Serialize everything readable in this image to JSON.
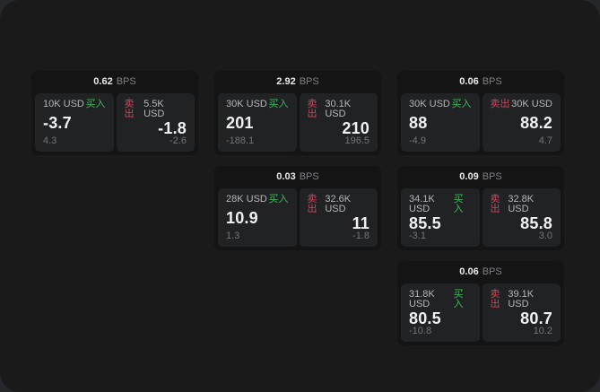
{
  "labels": {
    "bps": "BPS",
    "buy": "买入",
    "sell": "卖出"
  },
  "colors": {
    "buy_accent": "#3cba5a",
    "sell_accent": "#c8485e",
    "window_bg": "#1a1a1b",
    "card_bg": "#141415",
    "panel_bg": "#212224"
  },
  "cards": [
    {
      "spread": "0.62",
      "buy": {
        "size": "10K USD",
        "price": "-3.7",
        "delta": "4.3"
      },
      "sell": {
        "size": "5.5K USD",
        "price": "-1.8",
        "delta": "-2.6"
      }
    },
    {
      "spread": "2.92",
      "buy": {
        "size": "30K USD",
        "price": "201",
        "delta": "-188.1"
      },
      "sell": {
        "size": "30.1K USD",
        "price": "210",
        "delta": "196.5"
      }
    },
    {
      "spread": "0.06",
      "buy": {
        "size": "30K USD",
        "price": "88",
        "delta": "-4.9"
      },
      "sell": {
        "size": "30K USD",
        "price": "88.2",
        "delta": "4.7"
      }
    },
    {
      "spread": "0.03",
      "buy": {
        "size": "28K USD",
        "price": "10.9",
        "delta": "1.3"
      },
      "sell": {
        "size": "32.6K USD",
        "price": "11",
        "delta": "-1.8"
      }
    },
    {
      "spread": "0.09",
      "buy": {
        "size": "34.1K USD",
        "price": "85.5",
        "delta": "-3.1"
      },
      "sell": {
        "size": "32.8K USD",
        "price": "85.8",
        "delta": "3.0"
      }
    },
    {
      "spread": "0.06",
      "buy": {
        "size": "31.8K USD",
        "price": "80.5",
        "delta": "-10.8"
      },
      "sell": {
        "size": "39.1K USD",
        "price": "80.7",
        "delta": "10.2"
      }
    }
  ]
}
